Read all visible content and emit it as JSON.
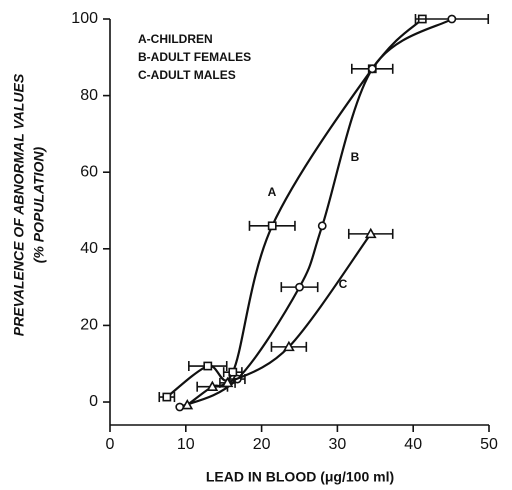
{
  "chart_data": {
    "type": "scatter",
    "x_label": "LEAD IN BLOOD (μg/100 ml)",
    "y_label": [
      "PREVALENCE OF ABNORMAL VALUES",
      "(% POPULATION)"
    ],
    "xlim": [
      0,
      50
    ],
    "xticks": [
      0,
      10,
      20,
      30,
      40,
      50
    ],
    "ylim": [
      -6,
      100
    ],
    "yticks": [
      0,
      20,
      40,
      60,
      80,
      100
    ],
    "series": [
      {
        "name": "A-CHILDREN",
        "label": "A",
        "marker": "square",
        "color": "#111",
        "x": [
          7.5,
          12.9,
          16.2,
          21.4,
          34.6,
          41.2
        ],
        "values": [
          1.3,
          9.4,
          7.8,
          46,
          87,
          100
        ],
        "errors": [
          1,
          2.5,
          1.2,
          3,
          2.7,
          null
        ]
      },
      {
        "name": "B-ADULT FEMALES",
        "label": "B",
        "marker": "circle",
        "color": "#111",
        "x": [
          9.2,
          16.8,
          25,
          28,
          34.6,
          45.1
        ],
        "values": [
          -1.3,
          6,
          30,
          46,
          87,
          100
        ],
        "errors": [
          null,
          1,
          2.4,
          null,
          null,
          4.8
        ]
      },
      {
        "name": "C-ADULT MALES",
        "label": "C",
        "marker": "triangle",
        "color": "#111",
        "x": [
          10.2,
          13.5,
          15.5,
          23.6,
          34.4
        ],
        "values": [
          -0.8,
          4,
          5,
          14.4,
          43.9
        ],
        "errors": [
          null,
          2,
          1,
          2.3,
          2.9
        ]
      }
    ]
  }
}
